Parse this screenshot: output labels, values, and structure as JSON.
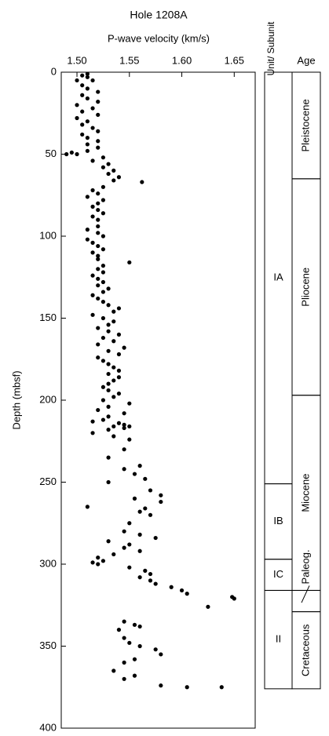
{
  "chart_data": {
    "type": "scatter",
    "title": "Hole 1208A",
    "x_label": "P-wave velocity (km/s)",
    "y_label": "Depth (mbsf)",
    "xlim": [
      1.485,
      1.67
    ],
    "xticks": [
      {
        "value": 1.5,
        "label": "1.50"
      },
      1.55,
      {
        "value": 1.6,
        "label": "1.60"
      },
      1.65
    ],
    "ylim": [
      0,
      400
    ],
    "yticks": [
      0,
      50,
      100,
      150,
      200,
      250,
      300,
      350,
      400
    ],
    "y_inverted": true,
    "x_axis_position": "top",
    "color": "#000000",
    "x": [
      1.51,
      1.505,
      1.51,
      1.5,
      1.515,
      1.505,
      1.51,
      1.52,
      1.505,
      1.51,
      1.52,
      1.5,
      1.515,
      1.505,
      1.52,
      1.5,
      1.51,
      1.505,
      1.515,
      1.52,
      1.505,
      1.51,
      1.52,
      1.51,
      1.52,
      1.51,
      1.495,
      1.49,
      1.5,
      1.525,
      1.515,
      1.53,
      1.525,
      1.535,
      1.53,
      1.54,
      1.535,
      1.562,
      1.525,
      1.515,
      1.52,
      1.51,
      1.525,
      1.52,
      1.515,
      1.52,
      1.525,
      1.515,
      1.52,
      1.52,
      1.51,
      1.52,
      1.525,
      1.51,
      1.515,
      1.52,
      1.525,
      1.515,
      1.52,
      1.52,
      1.55,
      1.525,
      1.52,
      1.525,
      1.515,
      1.52,
      1.525,
      1.52,
      1.53,
      1.525,
      1.515,
      1.52,
      1.525,
      1.53,
      1.54,
      1.535,
      1.515,
      1.525,
      1.535,
      1.53,
      1.52,
      1.53,
      1.54,
      1.525,
      1.535,
      1.52,
      1.545,
      1.53,
      1.54,
      1.52,
      1.525,
      1.53,
      1.535,
      1.54,
      1.53,
      1.54,
      1.535,
      1.53,
      1.525,
      1.53,
      1.54,
      1.535,
      1.525,
      1.55,
      1.53,
      1.52,
      1.545,
      1.53,
      1.525,
      1.515,
      1.54,
      1.545,
      1.55,
      1.535,
      1.545,
      1.53,
      1.515,
      1.535,
      1.55,
      1.545,
      1.53,
      1.56,
      1.545,
      1.555,
      1.565,
      1.53,
      1.57,
      1.58,
      1.555,
      1.58,
      1.51,
      1.565,
      1.56,
      1.57,
      1.55,
      1.545,
      1.56,
      1.575,
      1.53,
      1.55,
      1.545,
      1.56,
      1.535,
      1.52,
      1.525,
      1.515,
      1.52,
      1.55,
      1.565,
      1.57,
      1.56,
      1.57,
      1.575,
      1.59,
      1.6,
      1.605,
      1.648,
      1.65,
      1.625,
      1.545,
      1.555,
      1.56,
      1.54,
      1.545,
      1.55,
      1.56,
      1.575,
      1.58,
      1.555,
      1.545,
      1.535,
      1.555,
      1.545,
      1.58,
      1.605,
      1.638
    ],
    "values": [
      1,
      2,
      3,
      5,
      5,
      8,
      10,
      12,
      14,
      16,
      18,
      20,
      22,
      24,
      26,
      28,
      30,
      32,
      34,
      36,
      38,
      40,
      42,
      44,
      46,
      48,
      49,
      50,
      50,
      52,
      54,
      56,
      58,
      60,
      62,
      64,
      66,
      67,
      70,
      72,
      74,
      76,
      78,
      80,
      82,
      84,
      86,
      88,
      90,
      94,
      96,
      98,
      100,
      102,
      104,
      106,
      108,
      110,
      112,
      114,
      116,
      118,
      120,
      122,
      124,
      126,
      128,
      130,
      132,
      134,
      136,
      138,
      140,
      142,
      144,
      146,
      148,
      150,
      152,
      154,
      156,
      158,
      160,
      162,
      164,
      166,
      168,
      170,
      172,
      174,
      176,
      178,
      180,
      182,
      184,
      186,
      188,
      190,
      192,
      194,
      196,
      198,
      200,
      202,
      204,
      206,
      208,
      210,
      212,
      213,
      214,
      215,
      216,
      216,
      217,
      218,
      220,
      222,
      224,
      230,
      235,
      240,
      242,
      245,
      248,
      250,
      255,
      258,
      260,
      262,
      265,
      266,
      268,
      270,
      275,
      280,
      282,
      284,
      286,
      288,
      290,
      292,
      294,
      296,
      298,
      299,
      300,
      302,
      304,
      306,
      308,
      310,
      312,
      314,
      316,
      318,
      320,
      321,
      326,
      335,
      337,
      338,
      340,
      345,
      348,
      350,
      352,
      355,
      358,
      360,
      365,
      368,
      370,
      374,
      375,
      375
    ],
    "unit_header": "Unit/ Subunit",
    "age_header": "Age",
    "units": [
      {
        "label": "IA",
        "top": 0,
        "bottom": 251
      },
      {
        "label": "IB",
        "top": 251,
        "bottom": 297
      },
      {
        "label": "IC",
        "top": 297,
        "bottom": 316
      },
      {
        "label": "II",
        "top": 316,
        "bottom": 376
      }
    ],
    "ages": [
      {
        "label": "Pleistocene",
        "top": 0,
        "bottom": 65
      },
      {
        "label": "Pliocene",
        "top": 65,
        "bottom": 197
      },
      {
        "label": "Miocene",
        "top": 197,
        "bottom": 316
      },
      {
        "label": "Paleog.",
        "top": 316,
        "bottom": 329
      },
      {
        "label": "Cretaceous",
        "top": 329,
        "bottom": 376
      }
    ]
  }
}
